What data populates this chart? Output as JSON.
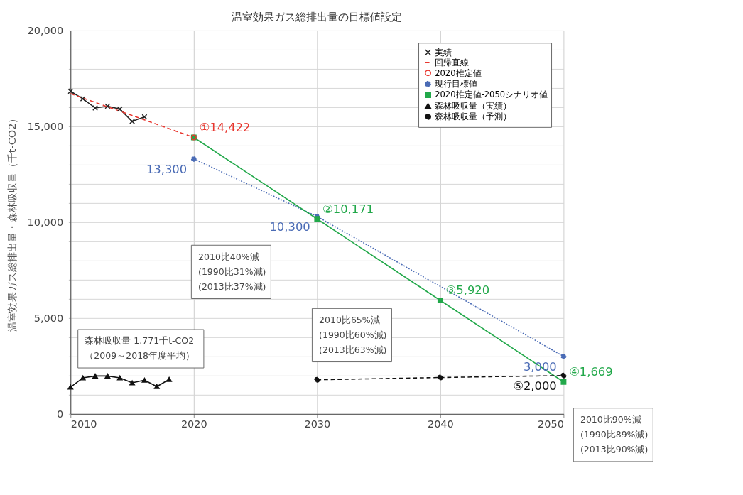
{
  "chart_data": {
    "type": "line",
    "title": "温室効果ガス総排出量の目標値設定",
    "ylabel": "温室効果ガス総排出量・森林吸収量（千t-CO2）",
    "xlim": [
      2010,
      2050
    ],
    "xticks": [
      2010,
      2020,
      2030,
      2040,
      2050
    ],
    "ylim": [
      0,
      20000
    ],
    "yticks": [
      0,
      {
        "value": 1000,
        "label": null
      },
      {
        "value": 2000,
        "label": null
      },
      {
        "value": 3000,
        "label": null
      },
      {
        "value": 4000,
        "label": null
      },
      {
        "value": 5000,
        "label": "5,000"
      },
      {
        "value": 6000,
        "label": null
      },
      {
        "value": 7000,
        "label": null
      },
      {
        "value": 8000,
        "label": null
      },
      {
        "value": 9000,
        "label": null
      },
      {
        "value": 10000,
        "label": "10,000"
      },
      {
        "value": 11000,
        "label": null
      },
      {
        "value": 12000,
        "label": null
      },
      {
        "value": 13000,
        "label": null
      },
      {
        "value": 14000,
        "label": null
      },
      {
        "value": 15000,
        "label": "15,000"
      },
      {
        "value": 16000,
        "label": null
      },
      {
        "value": 17000,
        "label": null
      },
      {
        "value": 18000,
        "label": null
      },
      {
        "value": 19000,
        "label": null
      },
      {
        "value": 20000,
        "label": "20,000"
      }
    ],
    "grid": true,
    "legend": "top right",
    "series": [
      {
        "name": "実績",
        "color": "#222222",
        "marker": "cross",
        "line_style": "solid",
        "x": [
          2010,
          2011,
          2012,
          2013,
          2014,
          2015,
          2016
        ],
        "values": [
          16830,
          16440,
          15960,
          16050,
          15900,
          15260,
          15500
        ]
      },
      {
        "name": "回帰直線",
        "color": "#e8372f",
        "marker": "none",
        "line_style": "dashed",
        "x": [
          2010,
          2020
        ],
        "values": [
          16710,
          14422
        ]
      },
      {
        "name": "2020推定値",
        "color": "#e8372f",
        "type": "scatter",
        "marker": "circle",
        "x": [
          2020
        ],
        "values": [
          14422
        ],
        "value_labels": [
          "①14,422"
        ]
      },
      {
        "name": "現行目標値",
        "color": "#4a6bb5",
        "marker": "circle",
        "line_style": "dotted",
        "x": [
          2020,
          2030,
          2050
        ],
        "values": [
          13300,
          10300,
          3000
        ],
        "value_labels": [
          "13,300",
          "10,300",
          "3,000"
        ]
      },
      {
        "name": "2020推定値-2050シナリオ値",
        "color": "#22a84a",
        "marker": "square",
        "line_style": "solid",
        "x": [
          2020,
          2030,
          2040,
          2050
        ],
        "values": [
          14422,
          10171,
          5920,
          1669
        ],
        "value_labels": [
          null,
          "②10,171",
          "③5,920",
          "④1,669"
        ]
      },
      {
        "name": "森林吸収量（実績）",
        "color": "#111111",
        "marker": "triangle",
        "line_style": "solid",
        "x": [
          2010,
          2011,
          2012,
          2013,
          2014,
          2015,
          2016,
          2017,
          2018
        ],
        "values": [
          1400,
          1880,
          1980,
          1980,
          1880,
          1620,
          1760,
          1430,
          1800
        ]
      },
      {
        "name": "森林吸収量（予測）",
        "color": "#111111",
        "marker": "circle",
        "line_style": "dashed",
        "x": [
          2030,
          2040,
          2050
        ],
        "values": [
          1780,
          1900,
          2000
        ],
        "value_labels": [
          null,
          null,
          "⑤2,000"
        ]
      }
    ],
    "annotations": [
      "2010比40%減\n(1990比31%減)\n(2013比37%減)",
      "2010比65%減\n(1990比60%減)\n(2013比63%減)",
      "2010比90%減\n(1990比89%減)\n(2013比90%減)",
      "森林吸収量 1,771千t-CO2\n（2009～2018年度平均）"
    ]
  }
}
